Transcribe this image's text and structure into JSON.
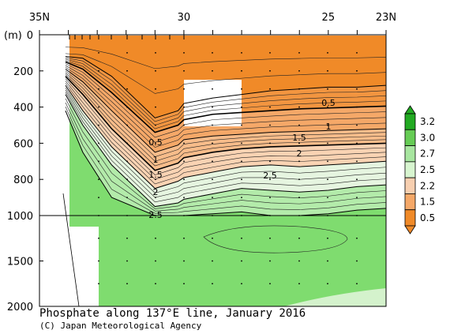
{
  "chart_data": {
    "type": "contour",
    "title": "Phosphate along 137°E line, January 2016",
    "credit": "(C) Japan Meteorological Agency",
    "x_axis": {
      "ticks": [
        "35N",
        "30",
        "25",
        "23N"
      ],
      "tick_values": [
        35,
        30,
        25,
        23
      ],
      "range": [
        35,
        23
      ]
    },
    "y_axis": {
      "unit": "(m)",
      "upper_ticks": [
        "0",
        "200",
        "400",
        "600",
        "800",
        "1000"
      ],
      "upper_values": [
        0,
        200,
        400,
        600,
        800,
        1000
      ],
      "lower_ticks": [
        "1500",
        "2000"
      ],
      "lower_values": [
        1500,
        2000
      ],
      "range": [
        0,
        2000
      ],
      "scale_break_at": 1000
    },
    "colorbar": {
      "levels": [
        "3.2",
        "3.0",
        "2.7",
        "2.5",
        "2.2",
        "1.5",
        "0.5"
      ],
      "colors": [
        "#22aa22",
        "#66cc55",
        "#a8e6a0",
        "#d8f5d0",
        "#f7cfb0",
        "#f5a868",
        "#f08a28"
      ]
    },
    "contour_labels": [
      {
        "text": "0.5"
      },
      {
        "text": "1"
      },
      {
        "text": "1.5"
      },
      {
        "text": "2"
      },
      {
        "text": "2.5"
      },
      {
        "text": "0.5"
      },
      {
        "text": "1"
      },
      {
        "text": "1.5"
      },
      {
        "text": "2"
      },
      {
        "text": "2.5"
      }
    ],
    "boundaries_depth_m": {
      "lat": [
        34.1,
        33.5,
        32.5,
        31.0,
        30.2,
        30.0,
        29.0,
        28.0,
        27.0,
        26.0,
        25.0,
        24.0,
        23.0
      ],
      "c05": [
        120,
        130,
        230,
        460,
        420,
        380,
        350,
        330,
        310,
        300,
        290,
        290,
        280
      ],
      "c10": [
        150,
        190,
        320,
        540,
        500,
        470,
        440,
        430,
        420,
        410,
        405,
        400,
        395
      ],
      "c15": [
        190,
        260,
        420,
        650,
        610,
        580,
        560,
        550,
        540,
        535,
        530,
        525,
        520
      ],
      "c20": [
        230,
        330,
        520,
        750,
        710,
        680,
        650,
        630,
        620,
        615,
        610,
        605,
        600
      ],
      "c25": [
        280,
        420,
        620,
        850,
        810,
        790,
        760,
        730,
        720,
        730,
        720,
        710,
        700
      ],
      "c27": [
        330,
        500,
        720,
        950,
        930,
        910,
        880,
        850,
        860,
        870,
        860,
        840,
        830
      ],
      "c30": [
        420,
        650,
        900,
        1000,
        1000,
        1000,
        990,
        980,
        1000,
        1000,
        990,
        970,
        960
      ]
    }
  }
}
